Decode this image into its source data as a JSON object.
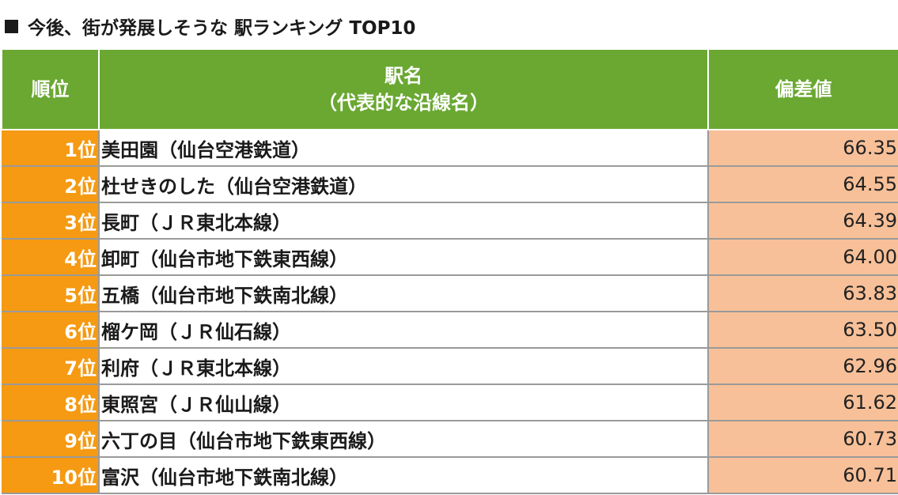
{
  "title": "今後、街が発展しそうな 駅ランキング TOP10",
  "header": {
    "rank": "順位",
    "station_line1": "駅名",
    "station_line2": "（代表的な沿線名）",
    "score": "偏差値"
  },
  "colors": {
    "header_green": "#6aa832",
    "rank_orange": "#f59a12",
    "score_peach": "#f8c098"
  },
  "rows": [
    {
      "rank": "1位",
      "name": "美田園（仙台空港鉄道）",
      "score": "66.35"
    },
    {
      "rank": "2位",
      "name": "杜せきのした（仙台空港鉄道）",
      "score": "64.55"
    },
    {
      "rank": "3位",
      "name": "長町（ＪＲ東北本線）",
      "score": "64.39"
    },
    {
      "rank": "4位",
      "name": "卸町（仙台市地下鉄東西線）",
      "score": "64.00"
    },
    {
      "rank": "5位",
      "name": "五橋（仙台市地下鉄南北線）",
      "score": "63.83"
    },
    {
      "rank": "6位",
      "name": "榴ケ岡（ＪＲ仙石線）",
      "score": "63.50"
    },
    {
      "rank": "7位",
      "name": "利府（ＪＲ東北本線）",
      "score": "62.96"
    },
    {
      "rank": "8位",
      "name": "東照宮（ＪＲ仙山線）",
      "score": "61.62"
    },
    {
      "rank": "9位",
      "name": "六丁の目（仙台市地下鉄東西線）",
      "score": "60.73"
    },
    {
      "rank": "10位",
      "name": "富沢（仙台市地下鉄南北線）",
      "score": "60.71"
    }
  ]
}
